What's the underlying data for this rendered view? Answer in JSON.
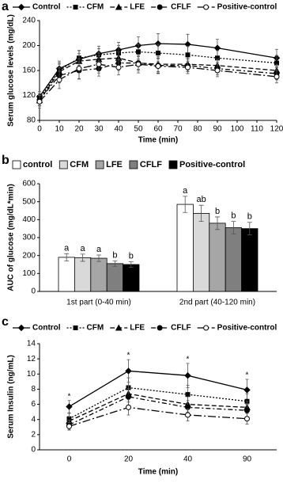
{
  "chart_data": [
    {
      "type": "line",
      "panel_label": "a",
      "y_label": "Serum glucose levels (mg/dL)",
      "x_label": "Time (min)",
      "x": [
        0,
        10,
        20,
        30,
        40,
        50,
        60,
        75,
        90,
        120
      ],
      "xlim": [
        0,
        120
      ],
      "xticks": [
        0,
        10,
        20,
        30,
        40,
        50,
        60,
        70,
        80,
        90,
        100,
        110,
        120
      ],
      "ylim": [
        80,
        240
      ],
      "yticks": [
        80,
        120,
        160,
        200,
        240
      ],
      "series": [
        {
          "name": "Control",
          "color": "#000000",
          "dash": "none",
          "marker": "diamond",
          "values": [
            118,
            163,
            178,
            187,
            193,
            200,
            203,
            202,
            196,
            180
          ],
          "errors": [
            8,
            12,
            14,
            12,
            12,
            14,
            16,
            16,
            14,
            14
          ]
        },
        {
          "name": "CFM",
          "color": "#000000",
          "dash": "2,2",
          "marker": "square",
          "values": [
            115,
            160,
            180,
            185,
            188,
            190,
            188,
            185,
            180,
            172
          ],
          "errors": [
            8,
            12,
            12,
            10,
            12,
            12,
            14,
            14,
            12,
            12
          ]
        },
        {
          "name": "LFE",
          "color": "#000000",
          "dash": "6,3",
          "marker": "triangle",
          "values": [
            112,
            158,
            175,
            178,
            180,
            172,
            170,
            170,
            168,
            160
          ],
          "errors": [
            8,
            12,
            12,
            10,
            10,
            10,
            12,
            10,
            10,
            10
          ]
        },
        {
          "name": "CFLF",
          "color": "#000000",
          "dash": "6,3,2,3",
          "marker": "circle",
          "values": [
            113,
            152,
            160,
            163,
            172,
            172,
            168,
            168,
            163,
            155
          ],
          "errors": [
            10,
            12,
            14,
            12,
            12,
            12,
            12,
            10,
            10,
            10
          ]
        },
        {
          "name": "Positive-control",
          "color": "#000000",
          "dash": "10,3,2,3",
          "marker": "open-circle",
          "values": [
            110,
            145,
            163,
            170,
            165,
            170,
            167,
            165,
            160,
            150
          ],
          "errors": [
            10,
            14,
            16,
            14,
            12,
            14,
            12,
            10,
            10,
            10
          ]
        }
      ]
    },
    {
      "type": "bar",
      "panel_label": "b",
      "y_label": "AUC of glucose (mg/dL*min)",
      "categories": [
        "1st part (0-40 min)",
        "2nd part (40-120 min)"
      ],
      "ylim": [
        0,
        600
      ],
      "yticks": [
        0,
        100,
        200,
        300,
        400,
        500,
        600
      ],
      "series": [
        {
          "name": "control",
          "color": "#ffffff",
          "values": [
            190,
            485
          ],
          "errors": [
            20,
            45
          ],
          "letters": [
            "a",
            "a"
          ]
        },
        {
          "name": "CFM",
          "color": "#d9d9d9",
          "values": [
            188,
            435
          ],
          "errors": [
            20,
            45
          ],
          "letters": [
            "a",
            "ab"
          ]
        },
        {
          "name": "LFE",
          "color": "#a6a6a6",
          "values": [
            185,
            380
          ],
          "errors": [
            18,
            35
          ],
          "letters": [
            "a",
            "b"
          ]
        },
        {
          "name": "CFLF",
          "color": "#7f7f7f",
          "values": [
            155,
            355
          ],
          "errors": [
            15,
            35
          ],
          "letters": [
            "b",
            "b"
          ]
        },
        {
          "name": "Positive-control",
          "color": "#000000",
          "values": [
            150,
            350
          ],
          "errors": [
            15,
            35
          ],
          "letters": [
            "b",
            "b"
          ]
        }
      ]
    },
    {
      "type": "line",
      "panel_label": "c",
      "y_label": "Serum Insulin (ng/mL)",
      "x_label": "Time (min)",
      "categories": [
        "0",
        "20",
        "40",
        "90"
      ],
      "category_annotations": [
        "*",
        "*",
        "*",
        "*"
      ],
      "ylim": [
        0,
        14
      ],
      "yticks": [
        0,
        2,
        4,
        6,
        8,
        10,
        12,
        14
      ],
      "series": [
        {
          "name": "Control",
          "color": "#000000",
          "dash": "none",
          "marker": "diamond",
          "values": [
            5.7,
            10.4,
            9.8,
            7.9
          ],
          "errors": [
            0.8,
            1.5,
            1.6,
            1.4
          ]
        },
        {
          "name": "CFM",
          "color": "#000000",
          "dash": "2,2",
          "marker": "square",
          "values": [
            4.1,
            8.2,
            7.3,
            6.4
          ],
          "errors": [
            0.7,
            1.3,
            1.2,
            1.0
          ]
        },
        {
          "name": "LFE",
          "color": "#000000",
          "dash": "6,3",
          "marker": "triangle",
          "values": [
            3.8,
            7.4,
            6.0,
            5.6
          ],
          "errors": [
            0.6,
            1.1,
            1.0,
            0.8
          ]
        },
        {
          "name": "CFLF",
          "color": "#000000",
          "dash": "6,3,2,3",
          "marker": "circle",
          "values": [
            3.3,
            7.0,
            5.6,
            5.2
          ],
          "errors": [
            0.6,
            1.1,
            0.9,
            0.8
          ]
        },
        {
          "name": "Positive-control",
          "color": "#000000",
          "dash": "10,3,2,3",
          "marker": "open-circle",
          "values": [
            3.1,
            5.6,
            4.6,
            4.1
          ],
          "errors": [
            0.5,
            1.0,
            0.8,
            0.7
          ]
        }
      ]
    }
  ]
}
